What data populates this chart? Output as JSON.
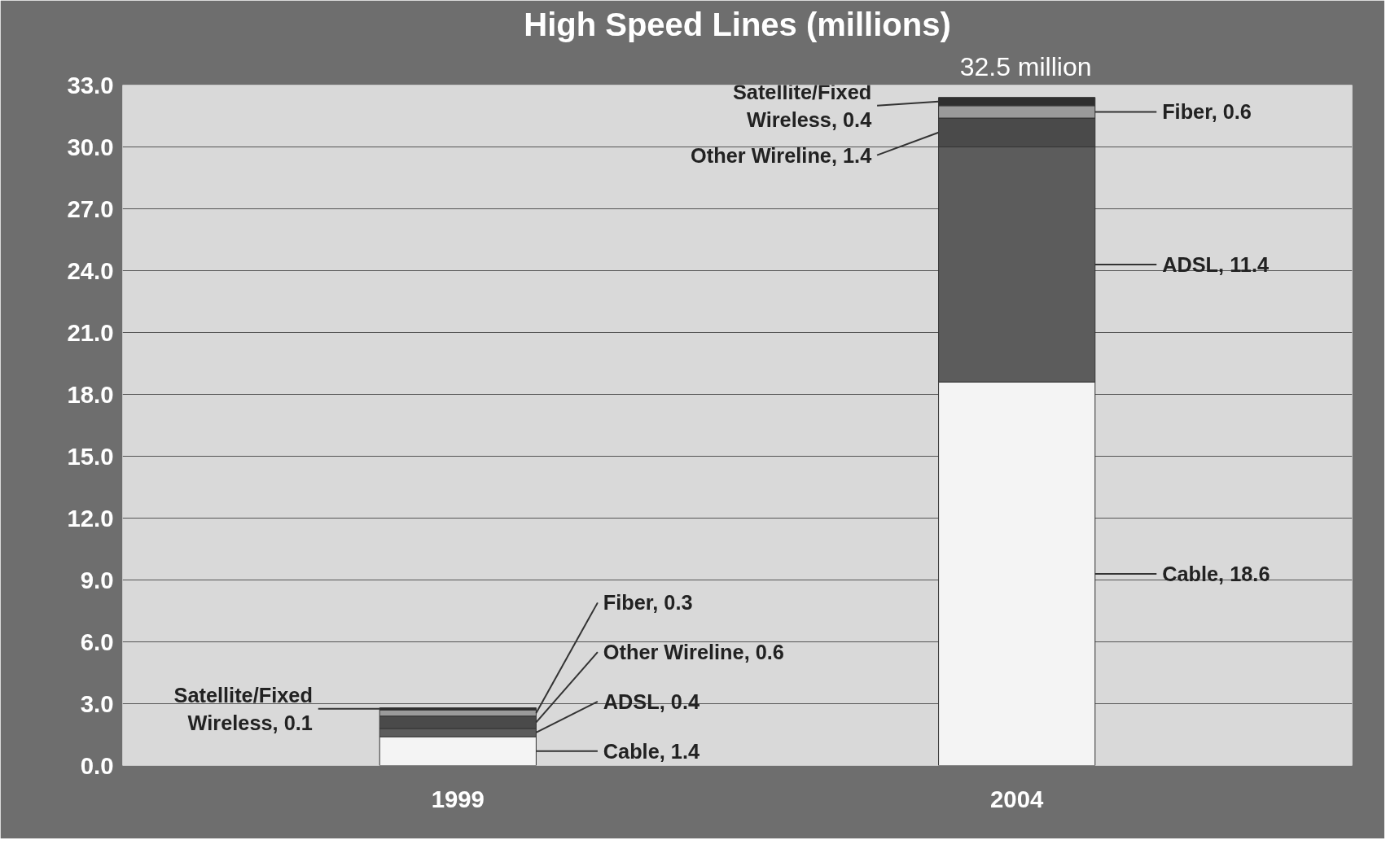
{
  "chart_data": {
    "type": "bar",
    "title": "High Speed Lines (millions)",
    "stacked": true,
    "categories": [
      "1999",
      "2004"
    ],
    "series": [
      {
        "color": "#f4f4f4",
        "values": [
          1.4,
          18.6
        ],
        "value_labels": [
          "Cable, 1.4",
          "Cable, 18.6"
        ]
      },
      {
        "color": "#5c5c5c",
        "values": [
          0.4,
          11.4
        ],
        "value_labels": [
          "ADSL, 0.4",
          "ADSL, 11.4"
        ]
      },
      {
        "color": "#4a4a4a",
        "values": [
          0.6,
          1.4
        ],
        "value_labels": [
          "Other Wireline, 0.6",
          "Other Wireline, 1.4"
        ]
      },
      {
        "color": "#9a9a9a",
        "values": [
          0.3,
          0.6
        ],
        "value_labels": [
          "Fiber, 0.3",
          "Fiber, 0.6"
        ]
      },
      {
        "color": "#2e2e2e",
        "values": [
          0.1,
          0.4
        ],
        "value_labels": [
          "Satellite/Fixed Wireless, 0.1",
          "Satellite/Fixed Wireless, 0.4"
        ]
      }
    ],
    "annotations": [
      "32.5 million"
    ],
    "ylim": [
      0,
      33
    ],
    "yticks": [
      {
        "value": 0,
        "label": "0.0"
      },
      {
        "value": 3,
        "label": "3.0"
      },
      {
        "value": 6,
        "label": "6.0"
      },
      {
        "value": 9,
        "label": "9.0"
      },
      {
        "value": 12,
        "label": "12.0"
      },
      {
        "value": 15,
        "label": "15.0"
      },
      {
        "value": 18,
        "label": "18.0"
      },
      {
        "value": 21,
        "label": "21.0"
      },
      {
        "value": 24,
        "label": "24.0"
      },
      {
        "value": 27,
        "label": "27.0"
      },
      {
        "value": 30,
        "label": "30.0"
      },
      {
        "value": 33,
        "label": "33.0"
      }
    ],
    "grid": "y"
  }
}
